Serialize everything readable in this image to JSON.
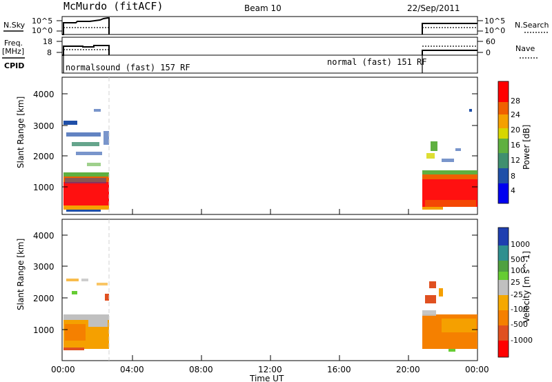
{
  "header": {
    "station": "McMurdo (fitACF)",
    "beam": "Beam 10",
    "date": "22/Sep/2011"
  },
  "top_panels": {
    "nsky_label": "N.Sky",
    "nsearch_label": "N.Search",
    "nsky_ticks": [
      "10^5",
      "10^0"
    ],
    "nsearch_ticks": [
      "10^5",
      "10^0"
    ],
    "freq_label_1": "Freq.",
    "freq_label_2": "[MHz]",
    "freq_ticks": [
      "18",
      "8"
    ],
    "nave_ticks": [
      "60",
      "0"
    ],
    "nave_label": "Nave",
    "cpid_label": "CPID",
    "cpid_left": "normalsound (fast) 157 RF",
    "cpid_right": "normal (fast) 151 RF"
  },
  "chart_data": [
    {
      "type": "heatmap",
      "name": "power",
      "ylabel": "Slant Range [km]",
      "yticks": [
        "4000",
        "3000",
        "2000",
        "1000"
      ],
      "ylim": [
        200,
        4600
      ],
      "colorbar_label": "Power [dB]",
      "colorbar_ticks": [
        "28",
        "24",
        "20",
        "16",
        "12",
        "8",
        "4"
      ],
      "colors": [
        "#0000f0",
        "#1f4fa8",
        "#3f8f6f",
        "#5fb040",
        "#d6d600",
        "#f5a000",
        "#f06000",
        "#ff0000"
      ],
      "data_windows": [
        [
          "00:00",
          "02:40"
        ],
        [
          "20:50",
          "24:00"
        ]
      ]
    },
    {
      "type": "heatmap",
      "name": "velocity",
      "ylabel": "Slant Range [km]",
      "yticks": [
        "4000",
        "3000",
        "2000",
        "1000"
      ],
      "ylim": [
        200,
        4600
      ],
      "colorbar_label": "Velocity [m s^-1]",
      "colorbar_ticks": [
        "1000",
        "500",
        "100",
        "25",
        "-25",
        "-100",
        "-500",
        "-1000"
      ],
      "colors": [
        "#1f3fb0",
        "#2f8f8f",
        "#4fa040",
        "#66cc33",
        "#c0c0c0",
        "#f5a800",
        "#f58000",
        "#e05020",
        "#ff0000"
      ],
      "data_windows": [
        [
          "00:00",
          "02:40"
        ],
        [
          "20:50",
          "24:00"
        ]
      ]
    }
  ],
  "time_axis": {
    "ticks": [
      "00:00",
      "04:00",
      "08:00",
      "12:00",
      "16:00",
      "20:00",
      "00:00"
    ],
    "label": "Time UT"
  }
}
